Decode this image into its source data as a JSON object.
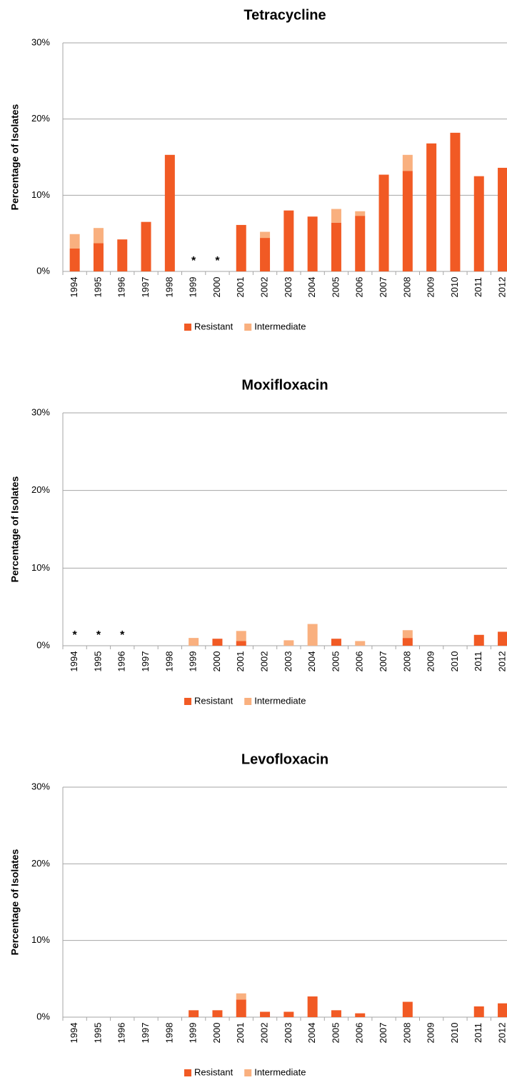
{
  "chart_data": [
    {
      "type": "bar",
      "stacked": true,
      "title": "Tetracycline",
      "y_label": "Percentage of Isolates",
      "categories": [
        "1994",
        "1995",
        "1996",
        "1997",
        "1998",
        "1999",
        "2000",
        "2001",
        "2002",
        "2003",
        "2004",
        "2005",
        "2006",
        "2007",
        "2008",
        "2009",
        "2010",
        "2011",
        "2012"
      ],
      "series": [
        {
          "name": "Resistant",
          "color": "#f15a24",
          "values": [
            3.0,
            3.7,
            4.2,
            6.5,
            15.3,
            null,
            null,
            6.1,
            4.4,
            8.0,
            7.2,
            6.4,
            7.3,
            12.7,
            13.2,
            16.8,
            18.2,
            12.5,
            13.6
          ]
        },
        {
          "name": "Intermediate",
          "color": "#f9b07f",
          "values": [
            1.9,
            2.0,
            0,
            0,
            0,
            null,
            null,
            0,
            0.8,
            0,
            0,
            1.8,
            0.6,
            0,
            2.1,
            0,
            0,
            0,
            0
          ]
        }
      ],
      "annotations": [
        {
          "x": "1999",
          "text": "*"
        },
        {
          "x": "2000",
          "text": "*"
        }
      ],
      "ylim": [
        0,
        30
      ],
      "yticks": [
        {
          "value": 0,
          "label": "0%"
        },
        {
          "value": 10,
          "label": "10%"
        },
        {
          "value": 20,
          "label": "20%"
        },
        {
          "value": 30,
          "label": "30%"
        }
      ],
      "grid": true
    },
    {
      "type": "bar",
      "stacked": true,
      "title": "Moxifloxacin",
      "y_label": "Percentage of Isolates",
      "categories": [
        "1994",
        "1995",
        "1996",
        "1997",
        "1998",
        "1999",
        "2000",
        "2001",
        "2002",
        "2003",
        "2004",
        "2005",
        "2006",
        "2007",
        "2008",
        "2009",
        "2010",
        "2011",
        "2012"
      ],
      "series": [
        {
          "name": "Resistant",
          "color": "#f15a24",
          "values": [
            null,
            null,
            null,
            0,
            0,
            0,
            0.9,
            0.6,
            0,
            0,
            0,
            0.9,
            0,
            0,
            1.0,
            0,
            0,
            1.4,
            1.8
          ]
        },
        {
          "name": "Intermediate",
          "color": "#f9b07f",
          "values": [
            null,
            null,
            null,
            0,
            0,
            1.0,
            0,
            1.3,
            0,
            0.7,
            2.8,
            0,
            0.6,
            0,
            1.0,
            0,
            0,
            0,
            0
          ]
        }
      ],
      "annotations": [
        {
          "x": "1994",
          "text": "*"
        },
        {
          "x": "1995",
          "text": "*"
        },
        {
          "x": "1996",
          "text": "*"
        }
      ],
      "ylim": [
        0,
        30
      ],
      "yticks": [
        {
          "value": 0,
          "label": "0%"
        },
        {
          "value": 10,
          "label": "10%"
        },
        {
          "value": 20,
          "label": "20%"
        },
        {
          "value": 30,
          "label": "30%"
        }
      ],
      "grid": true
    },
    {
      "type": "bar",
      "stacked": true,
      "title": "Levofloxacin",
      "y_label": "Percentage of Isolates",
      "categories": [
        "1994",
        "1995",
        "1996",
        "1997",
        "1998",
        "1999",
        "2000",
        "2001",
        "2002",
        "2003",
        "2004",
        "2005",
        "2006",
        "2007",
        "2008",
        "2009",
        "2010",
        "2011",
        "2012"
      ],
      "series": [
        {
          "name": "Resistant",
          "color": "#f15a24",
          "values": [
            0,
            0,
            0,
            0,
            0,
            0.9,
            0.9,
            2.3,
            0.7,
            0.7,
            2.7,
            0.9,
            0.5,
            0,
            2.0,
            0,
            0,
            1.4,
            1.8
          ]
        },
        {
          "name": "Intermediate",
          "color": "#f9b07f",
          "values": [
            0,
            0,
            0,
            0,
            0,
            0,
            0,
            0.8,
            0,
            0,
            0,
            0,
            0,
            0,
            0,
            0,
            0,
            0,
            0
          ]
        }
      ],
      "ylim": [
        0,
        30
      ],
      "yticks": [
        {
          "value": 0,
          "label": "0%"
        },
        {
          "value": 10,
          "label": "10%"
        },
        {
          "value": 20,
          "label": "20%"
        },
        {
          "value": 30,
          "label": "30%"
        }
      ],
      "grid": true
    }
  ]
}
